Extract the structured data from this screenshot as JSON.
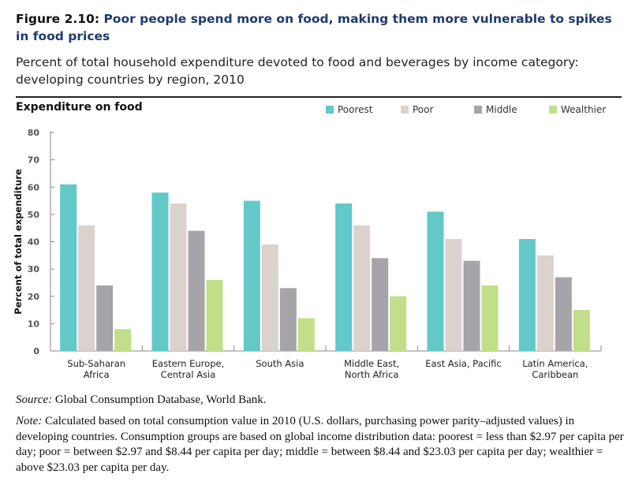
{
  "figure": {
    "label": "Figure 2.10:",
    "title": "Poor people spend more on food, making them more vulnerable to spikes in food prices",
    "subtitle": "Percent of total household expenditure devoted to food and beverages by income category: developing countries by region, 2010"
  },
  "panel_title": "Expenditure on food",
  "legend": [
    {
      "label": "Poorest",
      "color": "#62c8c8"
    },
    {
      "label": "Poor",
      "color": "#dcd2cd"
    },
    {
      "label": "Middle",
      "color": "#a5a4a9"
    },
    {
      "label": "Wealthier",
      "color": "#c1df88"
    }
  ],
  "chart_data": {
    "type": "bar",
    "ylabel": "Percent of total expenditure",
    "ylim": [
      0,
      80
    ],
    "yticks": [
      0,
      10,
      20,
      30,
      40,
      50,
      60,
      70,
      80
    ],
    "categories": [
      [
        "Sub-Saharan",
        "Africa"
      ],
      [
        "Eastern Europe,",
        "Central Asia"
      ],
      [
        "South Asia"
      ],
      [
        "Middle East,",
        "North Africa"
      ],
      [
        "East Asia, Pacific"
      ],
      [
        "Latin America,",
        "Caribbean"
      ]
    ],
    "series": [
      {
        "name": "Poorest",
        "color": "#62c8c8",
        "values": [
          61,
          58,
          55,
          54,
          51,
          41
        ]
      },
      {
        "name": "Poor",
        "color": "#dcd2cd",
        "values": [
          46,
          54,
          39,
          46,
          41,
          35
        ]
      },
      {
        "name": "Middle",
        "color": "#a5a4a9",
        "values": [
          24,
          44,
          23,
          34,
          33,
          27
        ]
      },
      {
        "name": "Wealthier",
        "color": "#c1df88",
        "values": [
          8,
          26,
          12,
          20,
          24,
          15
        ]
      }
    ],
    "grid": false,
    "legend_position": "top-right"
  },
  "source": {
    "label": "Source:",
    "text": " Global Consumption Database, World Bank."
  },
  "note": {
    "label": "Note:",
    "text": " Calculated based on total consumption value in 2010 (U.S. dollars, purchasing power parity–adjusted values) in developing countries. Consumption groups are based on global income distribution data: poorest = less than $2.97 per capita per day; poor = between $2.97 and $8.44 per capita per day; middle = between $8.44 and $23.03 per capita per day; wealthier = above $23.03 per capita per day."
  }
}
